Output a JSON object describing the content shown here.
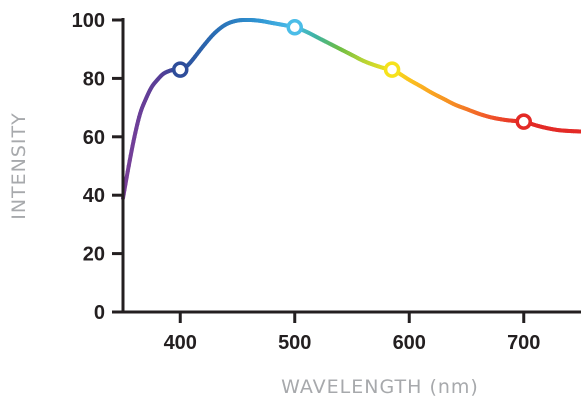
{
  "chart_data": {
    "type": "line",
    "xlabel": "WAVELENGTH (nm)",
    "ylabel": "INTENSITY",
    "xlim": [
      350,
      750
    ],
    "ylim": [
      0,
      100
    ],
    "x_ticks": [
      400,
      500,
      600,
      700
    ],
    "y_ticks": [
      0,
      20,
      40,
      60,
      80,
      100
    ],
    "grid": false,
    "series": [
      {
        "x": [
          350,
          355,
          360,
          365,
          370,
          375,
          380,
          385,
          390,
          395,
          400,
          405,
          410,
          420,
          430,
          440,
          450,
          460,
          470,
          480,
          490,
          500,
          510,
          520,
          530,
          540,
          550,
          560,
          570,
          580,
          585,
          590,
          600,
          610,
          620,
          630,
          640,
          650,
          660,
          670,
          680,
          690,
          700,
          710,
          720,
          730,
          740,
          750
        ],
        "y": [
          39,
          50,
          60,
          68,
          73,
          77,
          79.5,
          81.5,
          82.5,
          83,
          83,
          84,
          86,
          91,
          95.5,
          98.5,
          99.8,
          100,
          99.7,
          99,
          98.3,
          97.5,
          96,
          94,
          92,
          90,
          88,
          86,
          84.5,
          83.3,
          83,
          82,
          79.5,
          77.3,
          75,
          73,
          71,
          69.5,
          68,
          66.8,
          66,
          65.5,
          65.2,
          64,
          63,
          62.3,
          62,
          61.8
        ]
      }
    ],
    "markers": [
      {
        "x": 400,
        "y": 83,
        "color": "#2e4d9a"
      },
      {
        "x": 500,
        "y": 97.5,
        "color": "#4bbde8"
      },
      {
        "x": 585,
        "y": 83,
        "color": "#f6e21c"
      },
      {
        "x": 700,
        "y": 65.2,
        "color": "#e32a26"
      }
    ],
    "colors": {
      "axis": "#231f20",
      "axis_title": "#a7a9ac",
      "spectrum_stops": [
        {
          "x": 350,
          "color": "#7b3f98"
        },
        {
          "x": 385,
          "color": "#553e97"
        },
        {
          "x": 400,
          "color": "#2e4d9a"
        },
        {
          "x": 430,
          "color": "#2a6cb3"
        },
        {
          "x": 470,
          "color": "#2f95d3"
        },
        {
          "x": 500,
          "color": "#4bbde8"
        },
        {
          "x": 520,
          "color": "#3fb3a0"
        },
        {
          "x": 540,
          "color": "#6cbd45"
        },
        {
          "x": 560,
          "color": "#b2d235"
        },
        {
          "x": 585,
          "color": "#f6e21c"
        },
        {
          "x": 610,
          "color": "#fbb321"
        },
        {
          "x": 640,
          "color": "#f58b24"
        },
        {
          "x": 670,
          "color": "#f1592a"
        },
        {
          "x": 700,
          "color": "#e32a26"
        },
        {
          "x": 750,
          "color": "#e32a26"
        }
      ]
    }
  }
}
